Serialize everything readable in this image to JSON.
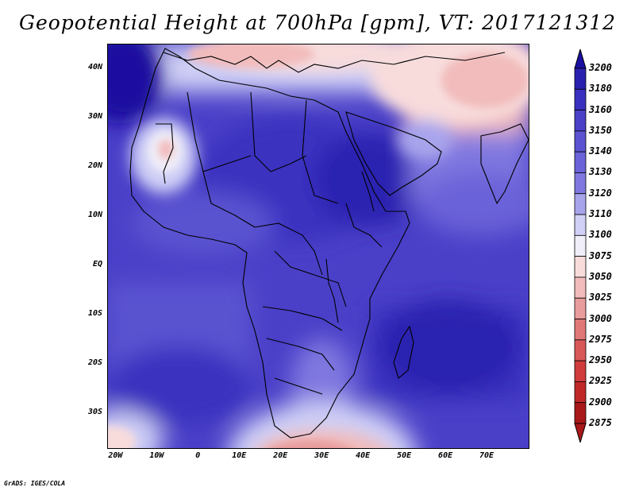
{
  "title": "Geopotential Height at 700hPa [gpm], VT: 2017121312",
  "credit": "GrADS: IGES/COLA",
  "map": {
    "lon_range": [
      -22,
      80
    ],
    "lat_range": [
      -37,
      45
    ],
    "lat_ticks": [
      "40N",
      "30N",
      "20N",
      "10N",
      "EQ",
      "10S",
      "20S",
      "30S"
    ],
    "lat_values": [
      40,
      30,
      20,
      10,
      0,
      -10,
      -20,
      -30
    ],
    "lon_ticks": [
      "20W",
      "10W",
      "0",
      "10E",
      "20E",
      "30E",
      "40E",
      "50E",
      "60E",
      "70E"
    ],
    "lon_values": [
      -20,
      -10,
      0,
      10,
      20,
      30,
      40,
      50,
      60,
      70
    ]
  },
  "colorbar": {
    "levels": [
      "3200",
      "3180",
      "3160",
      "3150",
      "3140",
      "3130",
      "3120",
      "3110",
      "3100",
      "3075",
      "3050",
      "3025",
      "3000",
      "2975",
      "2950",
      "2925",
      "2900",
      "2875"
    ],
    "colors": [
      "#1a0fa0",
      "#2a20b0",
      "#3a30c0",
      "#4a40c8",
      "#5a52d0",
      "#6a62d8",
      "#8078e0",
      "#a8a4ec",
      "#d0d0f6",
      "#f0eef8",
      "#f8dcdc",
      "#f2bcbc",
      "#e89c9c",
      "#e07878",
      "#d85858",
      "#d03c3c",
      "#c02828",
      "#a81818"
    ]
  }
}
